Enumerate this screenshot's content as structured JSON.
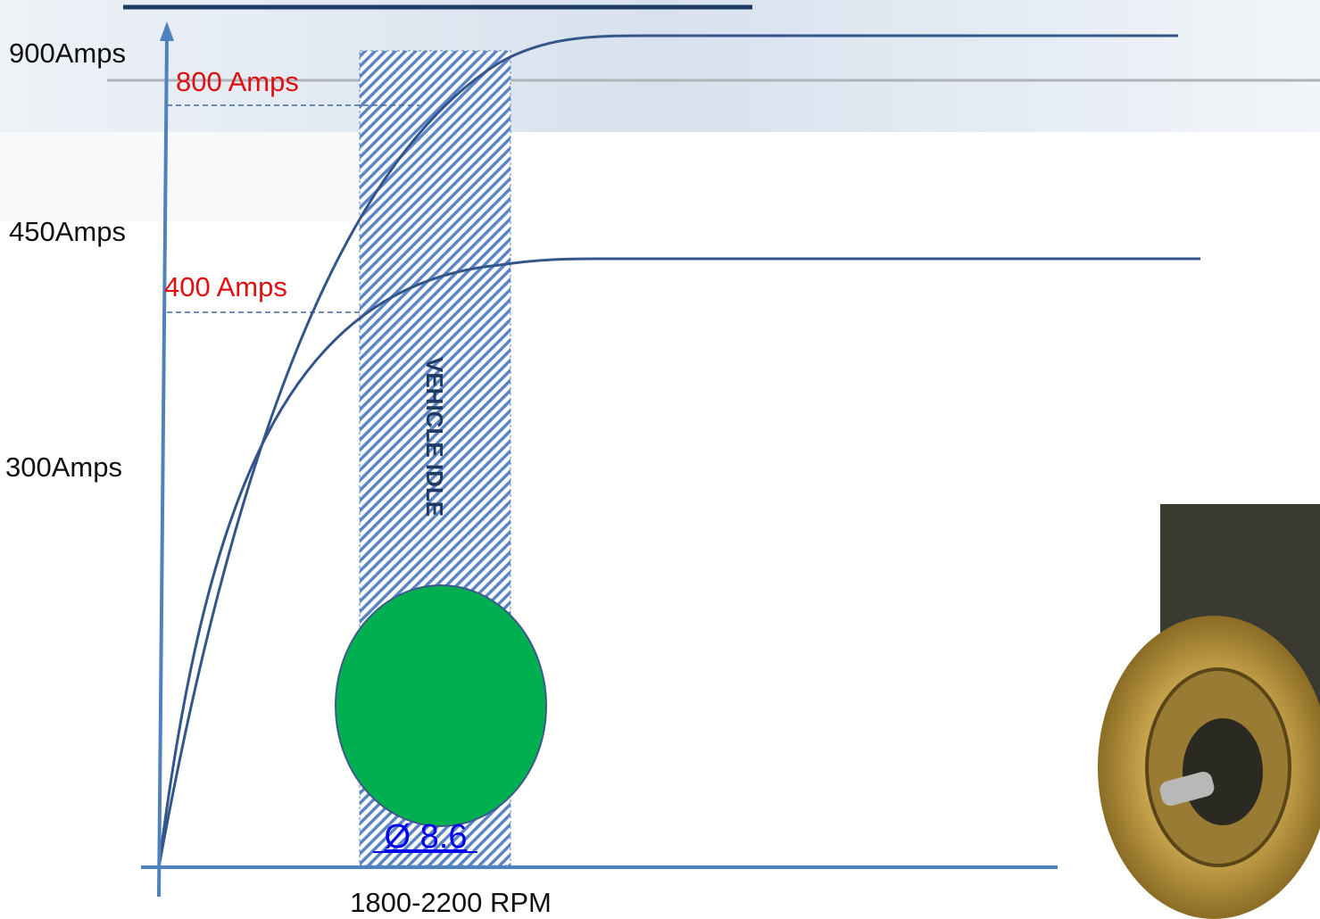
{
  "axis_labels": {
    "y": [
      "900Amps",
      "450Amps",
      "300Amps"
    ],
    "x": "1800-2200 RPM"
  },
  "levels": [
    "800 Amps",
    "400 Amps"
  ],
  "idle_band": "VEHICLE IDLE",
  "link": "Ø 8.6"
}
